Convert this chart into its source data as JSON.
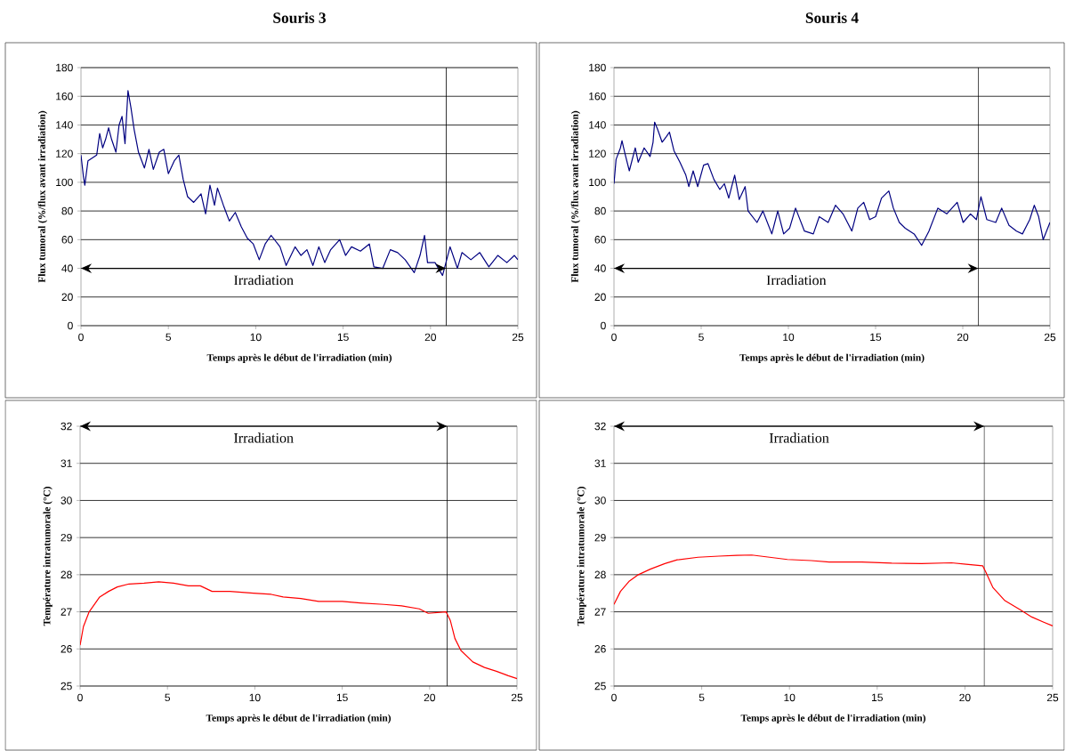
{
  "chart_data": [
    {
      "type": "line",
      "title": "Souris 3",
      "xlabel": "Temps après le début de l'irradiation (min)",
      "ylabel": "Flux tumoral (%/flux avant irradiation)",
      "xlim": [
        0,
        25
      ],
      "ylim": [
        0,
        180
      ],
      "xticks": [
        0,
        5,
        10,
        15,
        20,
        25
      ],
      "yticks": [
        0,
        20,
        40,
        60,
        80,
        100,
        120,
        140,
        160,
        180
      ],
      "grid": "y",
      "series": [
        {
          "color": "#000080",
          "x": [
            0,
            0.14,
            0.22,
            0.4,
            0.65,
            0.9,
            1.07,
            1.24,
            1.41,
            1.58,
            1.75,
            2.0,
            2.18,
            2.35,
            2.52,
            2.69,
            2.86,
            3.04,
            3.29,
            3.63,
            3.89,
            4.14,
            4.48,
            4.74,
            5.0,
            5.34,
            5.6,
            5.85,
            6.1,
            6.45,
            6.87,
            7.13,
            7.38,
            7.64,
            7.81,
            8.15,
            8.49,
            8.83,
            9.17,
            9.52,
            9.86,
            10.2,
            10.54,
            10.88,
            11.39,
            11.74,
            12.25,
            12.59,
            12.93,
            13.27,
            13.61,
            13.95,
            14.29,
            14.8,
            15.14,
            15.48,
            15.99,
            16.5,
            16.76,
            17.27,
            17.7,
            18.12,
            18.55,
            19.07,
            19.4,
            19.66,
            19.83,
            20.26,
            20.69,
            21.12,
            21.54,
            21.8,
            22.31,
            22.82,
            23.34,
            23.85,
            24.37,
            24.8,
            25
          ],
          "values": [
            119,
            104,
            98,
            115,
            117,
            119,
            134,
            124,
            130,
            138,
            130,
            121,
            140,
            146,
            127,
            164,
            152,
            137,
            121,
            110,
            123,
            109,
            121,
            123,
            106,
            115,
            119,
            102,
            90,
            86,
            92,
            78,
            98,
            84,
            96,
            84,
            73,
            79,
            69,
            61,
            57,
            46,
            57,
            63,
            55,
            42,
            55,
            49,
            53,
            42,
            55,
            44,
            53,
            60,
            49,
            55,
            52,
            57,
            41,
            40,
            53,
            51,
            46,
            37,
            49,
            63,
            44,
            44,
            35,
            55,
            40,
            51,
            46,
            51,
            41,
            49,
            44,
            49,
            46
          ]
        }
      ],
      "ref_lines": [
        {
          "axis": "x",
          "value": 20.9
        }
      ],
      "annotations": [
        "Irradiation"
      ]
    },
    {
      "type": "line",
      "title": "Souris 4",
      "xlabel": "Temps après le début de l'irradiation (min)",
      "ylabel": "Flux tumoral (%/flux avant irradiation)",
      "xlim": [
        0,
        25
      ],
      "ylim": [
        0,
        180
      ],
      "xticks": [
        0,
        5,
        10,
        15,
        20,
        25
      ],
      "yticks": [
        0,
        20,
        40,
        60,
        80,
        100,
        120,
        140,
        160,
        180
      ],
      "grid": "y",
      "series": [
        {
          "color": "#000080",
          "x": [
            0,
            0.12,
            0.37,
            0.46,
            0.63,
            0.88,
            1.22,
            1.39,
            1.73,
            2.07,
            2.24,
            2.33,
            2.5,
            2.76,
            3.01,
            3.18,
            3.44,
            3.78,
            4.12,
            4.29,
            4.54,
            4.8,
            5.14,
            5.39,
            5.73,
            6.07,
            6.33,
            6.58,
            6.92,
            7.18,
            7.52,
            7.69,
            8.2,
            8.54,
            9.05,
            9.39,
            9.73,
            10.07,
            10.41,
            10.92,
            11.43,
            11.77,
            12.28,
            12.7,
            13.13,
            13.64,
            13.98,
            14.32,
            14.66,
            15.0,
            15.34,
            15.76,
            16.02,
            16.36,
            16.7,
            17.21,
            17.64,
            18.06,
            18.57,
            19.08,
            19.68,
            20.02,
            20.44,
            20.78,
            21.04,
            21.38,
            21.89,
            22.23,
            22.65,
            23.08,
            23.42,
            23.84,
            24.1,
            24.35,
            24.61,
            25
          ],
          "values": [
            99,
            116,
            124,
            129,
            120,
            108,
            124,
            114,
            124,
            118,
            128,
            142,
            137,
            128,
            132,
            135,
            122,
            114,
            105,
            97,
            108,
            97,
            112,
            113,
            102,
            95,
            99,
            89,
            105,
            88,
            97,
            80,
            72,
            80,
            64,
            80,
            64,
            68,
            82,
            66,
            64,
            76,
            72,
            84,
            78,
            66,
            82,
            86,
            74,
            76,
            89,
            94,
            82,
            72,
            68,
            64,
            56,
            66,
            82,
            78,
            86,
            72,
            78,
            74,
            90,
            74,
            72,
            82,
            70,
            66,
            64,
            74,
            84,
            76,
            60,
            72
          ]
        }
      ],
      "ref_lines": [
        {
          "axis": "x",
          "value": 20.9
        }
      ],
      "annotations": [
        "Irradiation"
      ]
    },
    {
      "type": "line",
      "xlabel": "Temps après le début de l'irradiation (min)",
      "ylabel": "Température intratumorale (°C)",
      "xlim": [
        0,
        25
      ],
      "ylim": [
        25,
        32
      ],
      "xticks": [
        0,
        5,
        10,
        15,
        20,
        25
      ],
      "yticks": [
        25,
        26,
        27,
        28,
        29,
        30,
        31,
        32
      ],
      "grid": "y",
      "series": [
        {
          "color": "#ff0000",
          "x": [
            0,
            0.19,
            0.52,
            1.12,
            1.63,
            2.13,
            2.8,
            3.66,
            4.5,
            5.35,
            6.2,
            6.88,
            7.55,
            8.57,
            9.92,
            10.94,
            11.62,
            12.63,
            13.65,
            15.0,
            16.02,
            17.38,
            18.4,
            19.41,
            19.92,
            20.94,
            21.19,
            21.45,
            21.79,
            22.47,
            23.14,
            23.82,
            24.5,
            25
          ],
          "values": [
            26.1,
            26.6,
            27.0,
            27.4,
            27.55,
            27.67,
            27.75,
            27.77,
            27.81,
            27.77,
            27.7,
            27.7,
            27.55,
            27.55,
            27.5,
            27.47,
            27.4,
            27.36,
            27.28,
            27.28,
            27.24,
            27.2,
            27.16,
            27.08,
            26.96,
            27.0,
            26.76,
            26.28,
            25.96,
            25.65,
            25.5,
            25.4,
            25.28,
            25.2
          ]
        }
      ],
      "ref_lines": [
        {
          "axis": "x",
          "value": 21.0
        }
      ],
      "annotations": [
        "Irradiation"
      ]
    },
    {
      "type": "line",
      "xlabel": "Temps après le début de l'irradiation (min)",
      "ylabel": "Température intratumorale (°C)",
      "xlim": [
        0,
        25
      ],
      "ylim": [
        25,
        32
      ],
      "xticks": [
        0,
        5,
        10,
        15,
        20,
        25
      ],
      "yticks": [
        25,
        26,
        27,
        28,
        29,
        30,
        31,
        32
      ],
      "grid": "y",
      "series": [
        {
          "color": "#ff0000",
          "x": [
            0,
            0.37,
            0.88,
            1.39,
            2.07,
            2.9,
            3.6,
            4.79,
            5.98,
            7.0,
            7.85,
            8.87,
            9.88,
            11.24,
            12.26,
            14.13,
            15.83,
            17.53,
            19.23,
            20.07,
            21.01,
            21.18,
            21.6,
            22.28,
            23.13,
            23.81,
            24.49,
            25
          ],
          "values": [
            27.2,
            27.55,
            27.83,
            28.0,
            28.15,
            28.3,
            28.4,
            28.47,
            28.5,
            28.52,
            28.53,
            28.47,
            28.41,
            28.38,
            28.34,
            28.34,
            28.31,
            28.3,
            28.32,
            28.28,
            28.24,
            28.08,
            27.65,
            27.3,
            27.06,
            26.86,
            26.72,
            26.62
          ]
        }
      ],
      "ref_lines": [
        {
          "axis": "x",
          "value": 21.1
        }
      ],
      "annotations": [
        "Irradiation"
      ]
    }
  ]
}
